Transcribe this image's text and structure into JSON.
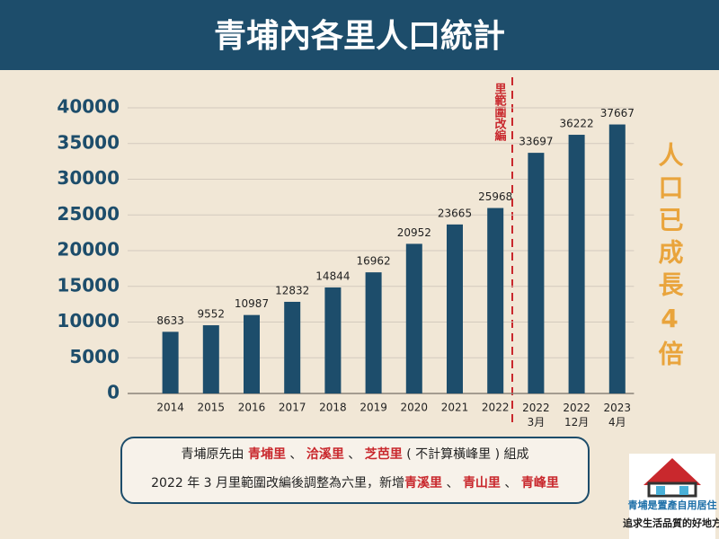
{
  "chart_data": {
    "type": "bar",
    "title": "青埔內各里人口統計",
    "categories": [
      "2014",
      "2015",
      "2016",
      "2017",
      "2018",
      "2019",
      "2020",
      "2021",
      "2022",
      "2022\n3月",
      "2022\n12月",
      "2023\n4月"
    ],
    "values": [
      8633,
      9552,
      10987,
      12832,
      14844,
      16962,
      20952,
      23665,
      25968,
      33697,
      36222,
      37667
    ],
    "color": "#1d4d6b",
    "ylim": [
      0,
      40000
    ],
    "yticks": [
      0,
      5000,
      10000,
      15000,
      20000,
      25000,
      30000,
      35000,
      40000
    ],
    "grid": true,
    "divider_annotation": "里範圍改編",
    "side_annotation": "人口已成長4倍"
  },
  "footer_lines": [
    [
      {
        "text": "青埔原先由 "
      },
      {
        "text": "青埔里",
        "highlight": true
      },
      {
        "text": " 、 "
      },
      {
        "text": "洽溪里",
        "highlight": true
      },
      {
        "text": " 、 "
      },
      {
        "text": "芝芭里",
        "highlight": true
      },
      {
        "text": " ( 不計算橫峰里 ) 組成"
      }
    ],
    [
      {
        "text": "2022 年 3 月里範圍改編後調整為六里，新增"
      },
      {
        "text": "青溪里",
        "highlight": true
      },
      {
        "text": " 、 "
      },
      {
        "text": "青山里",
        "highlight": true
      },
      {
        "text": " 、 "
      },
      {
        "text": "青峰里",
        "highlight": true
      }
    ]
  ],
  "logo": {
    "line1": "青埔是置產自用居住",
    "line2": "追求生活品質的好地方"
  }
}
